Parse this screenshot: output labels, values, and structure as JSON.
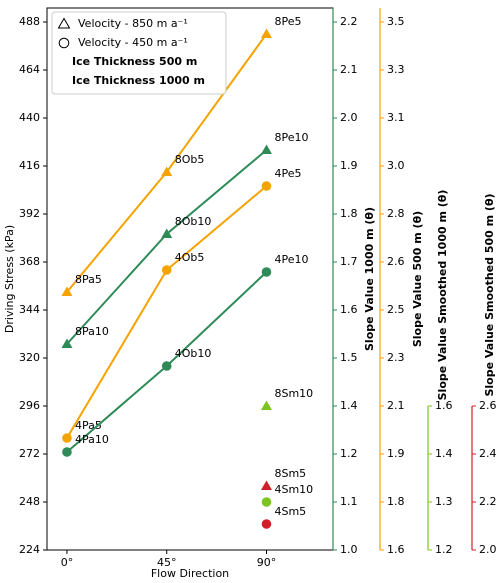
{
  "chart_data": {
    "type": "line",
    "xlabel": "Flow Direction",
    "ylabel": "Driving Stress (kPa)",
    "xlim": [
      -9,
      120
    ],
    "ylim": [
      224,
      495
    ],
    "xticks": [
      {
        "value": 0,
        "label": "0°"
      },
      {
        "value": 45,
        "label": "45°"
      },
      {
        "value": 90,
        "label": "90°"
      }
    ],
    "yticks": [
      224,
      248,
      272,
      296,
      320,
      344,
      368,
      392,
      416,
      440,
      464,
      488
    ],
    "legend": [
      {
        "label": "Velocity - 850 m a⁻¹",
        "marker": "triangle"
      },
      {
        "label": "Velocity - 450 m a⁻¹",
        "marker": "circle"
      },
      {
        "label": "Ice Thickness 500 m",
        "color": "#f5a300"
      },
      {
        "label": "Ice Thickness 1000 m",
        "color": "#2e8b57"
      }
    ],
    "series": [
      {
        "x": [
          0,
          45,
          90
        ],
        "values": [
          353,
          413,
          482
        ],
        "point_labels": [
          "8Pa5",
          "8Ob5",
          "8Pe5"
        ],
        "color": "#f5a300",
        "marker": "triangle",
        "line": true
      },
      {
        "x": [
          0,
          45,
          90
        ],
        "values": [
          327,
          382,
          424
        ],
        "point_labels": [
          "8Pa10",
          "8Ob10",
          "8Pe10"
        ],
        "color": "#2e8b57",
        "marker": "triangle",
        "line": true
      },
      {
        "x": [
          0,
          45,
          90
        ],
        "values": [
          280,
          364,
          406
        ],
        "point_labels": [
          "4Pa5",
          "4Ob5",
          "4Pe5"
        ],
        "color": "#f5a300",
        "marker": "circle",
        "line": true
      },
      {
        "x": [
          0,
          45,
          90
        ],
        "values": [
          273,
          316,
          363
        ],
        "point_labels": [
          "4Pa10",
          "4Ob10",
          "4Pe10"
        ],
        "color": "#2e8b57",
        "marker": "circle",
        "line": true
      },
      {
        "x": [
          90
        ],
        "values": [
          296
        ],
        "point_labels": [
          "8Sm10"
        ],
        "color": "#7cc41f",
        "marker": "triangle",
        "line": false
      },
      {
        "x": [
          90
        ],
        "values": [
          256
        ],
        "point_labels": [
          "8Sm5"
        ],
        "color": "#d0202a",
        "marker": "triangle",
        "line": false
      },
      {
        "x": [
          90
        ],
        "values": [
          248
        ],
        "point_labels": [
          "4Sm10"
        ],
        "color": "#7cc41f",
        "marker": "circle",
        "line": false
      },
      {
        "x": [
          90
        ],
        "values": [
          237
        ],
        "point_labels": [
          "4Sm5"
        ],
        "color": "#d0202a",
        "marker": "circle",
        "line": false
      }
    ],
    "secondary_axes": [
      {
        "label": "Slope Value 1000 m (θ)",
        "color": "#2e8b57",
        "tick_labels": [
          "1.0",
          "1.1",
          "1.2",
          "1.4",
          "1.5",
          "1.6",
          "1.7",
          "1.8",
          "1.9",
          "2.0",
          "2.1",
          "2.2"
        ]
      },
      {
        "label": "Slope Value 500 m (θ)",
        "color": "#f5a300",
        "tick_labels": [
          "1.6",
          "1.8",
          "1.9",
          "2.1",
          "2.3",
          "2.5",
          "2.6",
          "2.8",
          "3.0",
          "3.1",
          "3.3",
          "3.5"
        ]
      },
      {
        "label": "Slope Value Smoothed 1000 m (θ)",
        "color": "#7cc41f",
        "tick_labels": [
          "1.2",
          "1.3",
          "1.4",
          "1.6"
        ]
      },
      {
        "label": "Slope Value Smoothed 500 m (θ)",
        "color": "#d0202a",
        "tick_labels": [
          "2.0",
          "2.2",
          "2.4",
          "2.6"
        ]
      }
    ]
  }
}
